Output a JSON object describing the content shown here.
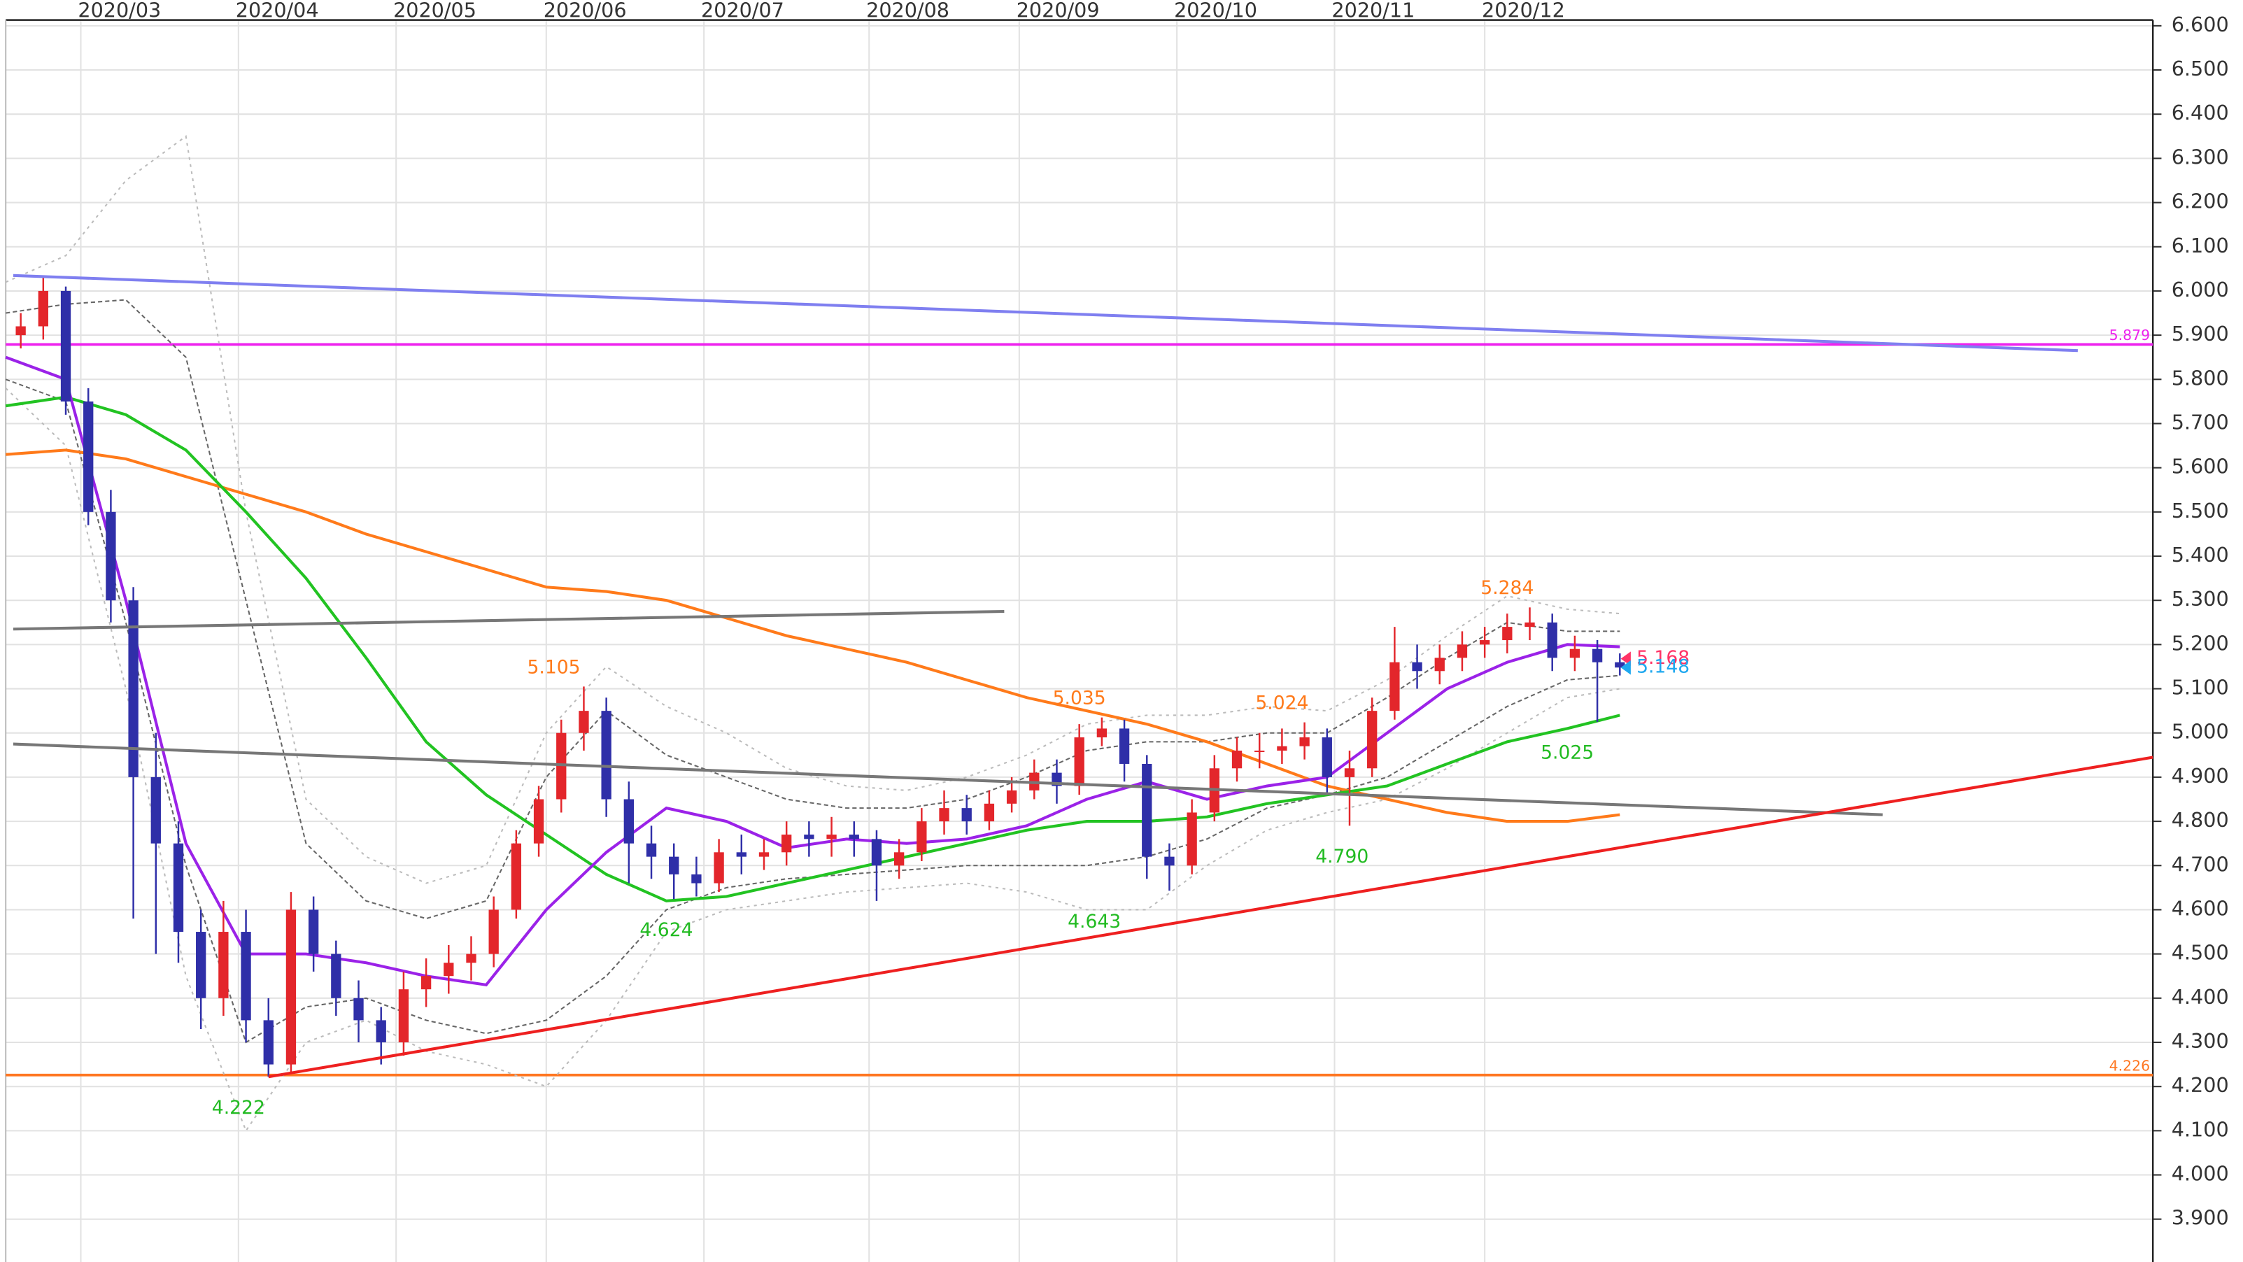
{
  "chart_data": {
    "type": "candlestick",
    "xlim": [
      0,
      286
    ],
    "xticks": [
      {
        "value": 10,
        "label": "2020/03"
      },
      {
        "value": 31,
        "label": "2020/04"
      },
      {
        "value": 52,
        "label": "2020/05"
      },
      {
        "value": 72,
        "label": "2020/06"
      },
      {
        "value": 93,
        "label": "2020/07"
      },
      {
        "value": 115,
        "label": "2020/08"
      },
      {
        "value": 135,
        "label": "2020/09"
      },
      {
        "value": 156,
        "label": "2020/10"
      },
      {
        "value": 177,
        "label": "2020/11"
      },
      {
        "value": 197,
        "label": "2020/12"
      }
    ],
    "ylim": [
      3.803,
      6.613
    ],
    "yticks": [
      {
        "value": 6.6,
        "label": "6.600"
      },
      {
        "value": 6.5,
        "label": "6.500"
      },
      {
        "value": 6.4,
        "label": "6.400"
      },
      {
        "value": 6.3,
        "label": "6.300"
      },
      {
        "value": 6.2,
        "label": "6.200"
      },
      {
        "value": 6.1,
        "label": "6.100"
      },
      {
        "value": 6.0,
        "label": "6.000"
      },
      {
        "value": 5.9,
        "label": "5.900"
      },
      {
        "value": 5.8,
        "label": "5.800"
      },
      {
        "value": 5.7,
        "label": "5.700"
      },
      {
        "value": 5.6,
        "label": "5.600"
      },
      {
        "value": 5.5,
        "label": "5.500"
      },
      {
        "value": 5.4,
        "label": "5.400"
      },
      {
        "value": 5.3,
        "label": "5.300"
      },
      {
        "value": 5.2,
        "label": "5.200"
      },
      {
        "value": 5.1,
        "label": "5.100"
      },
      {
        "value": 5.0,
        "label": "5.000"
      },
      {
        "value": 4.9,
        "label": "4.900"
      },
      {
        "value": 4.8,
        "label": "4.800"
      },
      {
        "value": 4.7,
        "label": "4.700"
      },
      {
        "value": 4.6,
        "label": "4.600"
      },
      {
        "value": 4.5,
        "label": "4.500"
      },
      {
        "value": 4.4,
        "label": "4.400"
      },
      {
        "value": 4.3,
        "label": "4.300"
      },
      {
        "value": 4.2,
        "label": "4.200"
      },
      {
        "value": 4.1,
        "label": "4.100"
      },
      {
        "value": 4.0,
        "label": "4.000"
      },
      {
        "value": 3.9,
        "label": "3.900"
      }
    ],
    "grid": true,
    "candles": {
      "up_color": "#e3262b",
      "down_color": "#2f2fa8",
      "x": [
        2,
        5,
        8,
        11,
        14,
        17,
        20,
        23,
        26,
        29,
        32,
        35,
        38,
        41,
        44,
        47,
        50,
        53,
        56,
        59,
        62,
        65,
        68,
        71,
        74,
        77,
        80,
        83,
        86,
        89,
        92,
        95,
        98,
        101,
        104,
        107,
        110,
        113,
        116,
        119,
        122,
        125,
        128,
        131,
        134,
        137,
        140,
        143,
        146,
        149,
        152,
        155,
        158,
        161,
        164,
        167,
        170,
        173,
        176,
        179,
        182,
        185,
        188,
        191,
        194,
        197,
        200,
        203,
        206,
        209,
        212,
        215
      ],
      "open": [
        5.9,
        5.92,
        6.0,
        5.75,
        5.5,
        5.3,
        4.9,
        4.75,
        4.55,
        4.4,
        4.55,
        4.35,
        4.25,
        4.6,
        4.5,
        4.4,
        4.35,
        4.3,
        4.42,
        4.45,
        4.48,
        4.5,
        4.6,
        4.75,
        4.85,
        5.0,
        5.05,
        4.85,
        4.75,
        4.72,
        4.68,
        4.66,
        4.73,
        4.72,
        4.73,
        4.77,
        4.76,
        4.77,
        4.76,
        4.7,
        4.73,
        4.8,
        4.83,
        4.8,
        4.84,
        4.87,
        4.91,
        4.88,
        4.99,
        5.01,
        4.93,
        4.72,
        4.7,
        4.82,
        4.92,
        4.96,
        4.96,
        4.97,
        4.99,
        4.9,
        4.92,
        5.05,
        5.16,
        5.14,
        5.17,
        5.2,
        5.21,
        5.24,
        5.25,
        5.17,
        5.19,
        5.16
      ],
      "high": [
        5.95,
        6.03,
        6.01,
        5.78,
        5.55,
        5.33,
        5.0,
        4.8,
        4.6,
        4.62,
        4.6,
        4.4,
        4.64,
        4.63,
        4.53,
        4.44,
        4.38,
        4.46,
        4.49,
        4.52,
        4.54,
        4.63,
        4.78,
        4.88,
        5.03,
        5.105,
        5.08,
        4.89,
        4.79,
        4.75,
        4.72,
        4.76,
        4.77,
        4.76,
        4.8,
        4.8,
        4.81,
        4.8,
        4.78,
        4.76,
        4.83,
        4.87,
        4.86,
        4.87,
        4.9,
        4.94,
        4.94,
        5.02,
        5.035,
        5.03,
        4.95,
        4.75,
        4.85,
        4.95,
        4.99,
        5.0,
        5.01,
        5.024,
        5.01,
        4.96,
        5.08,
        5.24,
        5.2,
        5.2,
        5.23,
        5.24,
        5.27,
        5.284,
        5.27,
        5.22,
        5.21,
        5.18
      ],
      "low": [
        5.87,
        5.89,
        5.72,
        5.47,
        5.25,
        4.58,
        4.5,
        4.48,
        4.33,
        4.36,
        4.3,
        4.222,
        4.23,
        4.46,
        4.36,
        4.3,
        4.25,
        4.27,
        4.38,
        4.41,
        4.44,
        4.47,
        4.58,
        4.72,
        4.82,
        4.96,
        4.81,
        4.66,
        4.67,
        4.624,
        4.63,
        4.64,
        4.68,
        4.69,
        4.7,
        4.72,
        4.72,
        4.72,
        4.62,
        4.67,
        4.71,
        4.77,
        4.77,
        4.78,
        4.82,
        4.85,
        4.84,
        4.86,
        4.97,
        4.89,
        4.67,
        4.643,
        4.68,
        4.8,
        4.89,
        4.92,
        4.93,
        4.94,
        4.86,
        4.79,
        4.9,
        5.03,
        5.1,
        5.11,
        5.14,
        5.17,
        5.18,
        5.21,
        5.14,
        5.14,
        5.025,
        5.13
      ],
      "close": [
        5.92,
        6.0,
        5.75,
        5.5,
        5.3,
        4.9,
        4.75,
        4.55,
        4.4,
        4.55,
        4.35,
        4.25,
        4.6,
        4.5,
        4.4,
        4.35,
        4.3,
        4.42,
        4.45,
        4.48,
        4.5,
        4.6,
        4.75,
        4.85,
        5.0,
        5.05,
        4.85,
        4.75,
        4.72,
        4.68,
        4.66,
        4.73,
        4.72,
        4.73,
        4.77,
        4.76,
        4.77,
        4.76,
        4.7,
        4.73,
        4.8,
        4.83,
        4.8,
        4.84,
        4.87,
        4.91,
        4.88,
        4.99,
        5.01,
        4.93,
        4.72,
        4.7,
        4.82,
        4.92,
        4.96,
        4.96,
        4.97,
        4.99,
        4.9,
        4.92,
        5.05,
        5.16,
        5.14,
        5.17,
        5.2,
        5.21,
        5.24,
        5.25,
        5.17,
        5.19,
        5.16,
        5.148
      ]
    },
    "overlay_x": [
      0,
      8,
      16,
      24,
      32,
      40,
      48,
      56,
      64,
      72,
      80,
      88,
      96,
      104,
      112,
      120,
      128,
      136,
      144,
      152,
      160,
      168,
      176,
      184,
      192,
      200,
      208,
      215
    ],
    "overlays": [
      {
        "color": "#bbbbbb",
        "dash": "2 3",
        "width": 1,
        "values": [
          6.02,
          6.08,
          6.25,
          6.35,
          5.5,
          4.85,
          4.72,
          4.66,
          4.7,
          5.0,
          5.15,
          5.06,
          5.0,
          4.92,
          4.88,
          4.87,
          4.9,
          4.95,
          5.02,
          5.04,
          5.04,
          5.06,
          5.05,
          5.12,
          5.22,
          5.31,
          5.28,
          5.27
        ]
      },
      {
        "color": "#bbbbbb",
        "dash": "2 3",
        "width": 1,
        "values": [
          5.78,
          5.65,
          5.1,
          4.45,
          4.1,
          4.3,
          4.35,
          4.28,
          4.25,
          4.2,
          4.35,
          4.55,
          4.6,
          4.62,
          4.64,
          4.65,
          4.66,
          4.64,
          4.6,
          4.6,
          4.7,
          4.78,
          4.82,
          4.85,
          4.92,
          5.0,
          5.08,
          5.1
        ]
      },
      {
        "color": "#666666",
        "dash": "3 2",
        "width": 1,
        "values": [
          5.95,
          5.97,
          5.98,
          5.85,
          5.3,
          4.75,
          4.62,
          4.58,
          4.62,
          4.9,
          5.05,
          4.95,
          4.9,
          4.85,
          4.83,
          4.83,
          4.85,
          4.9,
          4.96,
          4.98,
          4.98,
          5.0,
          5.0,
          5.08,
          5.17,
          5.25,
          5.23,
          5.23
        ]
      },
      {
        "color": "#666666",
        "dash": "3 2",
        "width": 1,
        "values": [
          5.8,
          5.75,
          5.25,
          4.7,
          4.3,
          4.38,
          4.4,
          4.35,
          4.32,
          4.35,
          4.45,
          4.6,
          4.65,
          4.67,
          4.68,
          4.69,
          4.7,
          4.7,
          4.7,
          4.72,
          4.76,
          4.83,
          4.86,
          4.9,
          4.98,
          5.06,
          5.12,
          5.13
        ]
      },
      {
        "color": "#ff7a1a",
        "dash": "none",
        "width": 2,
        "values": [
          5.63,
          5.64,
          5.62,
          5.58,
          5.54,
          5.5,
          5.45,
          5.41,
          5.37,
          5.33,
          5.32,
          5.3,
          5.26,
          5.22,
          5.19,
          5.16,
          5.12,
          5.08,
          5.05,
          5.02,
          4.98,
          4.93,
          4.88,
          4.85,
          4.82,
          4.8,
          4.8,
          4.815
        ]
      },
      {
        "color": "#22c322",
        "dash": "none",
        "width": 2,
        "values": [
          5.74,
          5.76,
          5.72,
          5.64,
          5.5,
          5.35,
          5.17,
          4.98,
          4.86,
          4.77,
          4.68,
          4.62,
          4.63,
          4.66,
          4.69,
          4.72,
          4.75,
          4.78,
          4.8,
          4.8,
          4.81,
          4.84,
          4.86,
          4.88,
          4.93,
          4.98,
          5.01,
          5.04
        ]
      },
      {
        "color": "#9b22e8",
        "dash": "none",
        "width": 2,
        "values": [
          5.85,
          5.8,
          5.3,
          4.75,
          4.5,
          4.5,
          4.48,
          4.45,
          4.43,
          4.6,
          4.73,
          4.83,
          4.8,
          4.74,
          4.76,
          4.75,
          4.76,
          4.79,
          4.85,
          4.89,
          4.85,
          4.88,
          4.9,
          5.0,
          5.1,
          5.16,
          5.2,
          5.195
        ]
      }
    ],
    "trendlines": [
      {
        "color": "#7f7ff0",
        "x": [
          1,
          276
        ],
        "y": [
          6.035,
          5.865
        ]
      },
      {
        "color": "#777777",
        "x": [
          1,
          133
        ],
        "y": [
          5.235,
          5.275
        ]
      },
      {
        "color": "#777777",
        "x": [
          1,
          250
        ],
        "y": [
          4.975,
          4.815
        ]
      },
      {
        "color": "#ee2020",
        "x": [
          35,
          286
        ],
        "y": [
          4.222,
          4.945
        ]
      }
    ],
    "hlines": [
      {
        "value": 5.879,
        "color": "#ee22ee"
      },
      {
        "value": 4.226,
        "color": "#ff7722"
      }
    ],
    "high_labels": {
      "color": "#ff7a1a",
      "items": [
        {
          "x": 73,
          "value": 5.105,
          "label": "5.105"
        },
        {
          "x": 143,
          "value": 5.035,
          "label": "5.035"
        },
        {
          "x": 170,
          "value": 5.024,
          "label": "5.024"
        },
        {
          "x": 200,
          "value": 5.284,
          "label": "5.284"
        }
      ]
    },
    "low_labels": {
      "color": "#22bb22",
      "items": [
        {
          "x": 31,
          "value": 4.222,
          "label": "4.222"
        },
        {
          "x": 88,
          "value": 4.624,
          "label": "4.624"
        },
        {
          "x": 145,
          "value": 4.643,
          "label": "4.643"
        },
        {
          "x": 178,
          "value": 4.79,
          "label": "4.790"
        },
        {
          "x": 208,
          "value": 5.025,
          "label": "5.025"
        }
      ]
    },
    "price_markers": [
      {
        "value": 5.168,
        "color": "#ff3366"
      },
      {
        "value": 5.148,
        "color": "#1fa8ef"
      }
    ]
  }
}
